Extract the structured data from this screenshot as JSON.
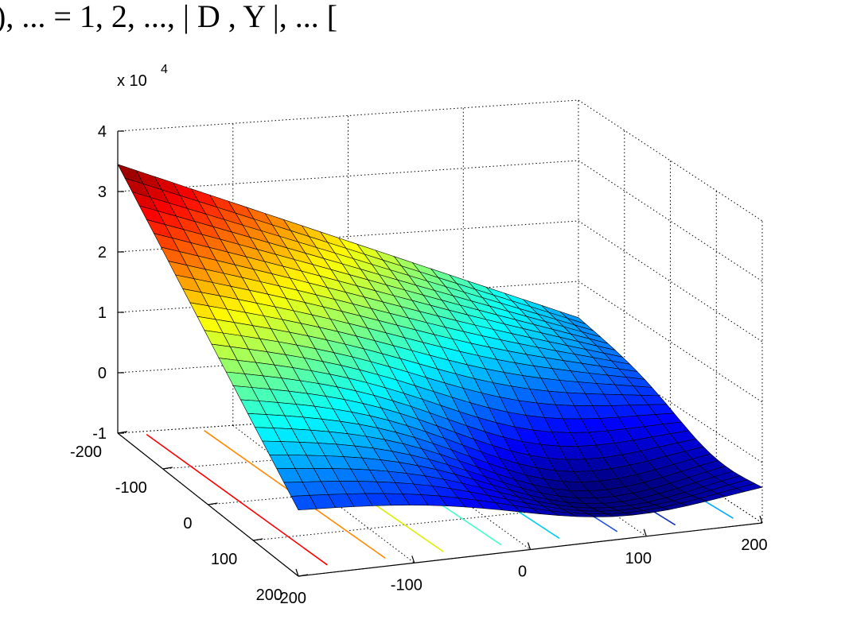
{
  "header_fragment": "), ... = 1, 2, ..., | D , Y |, ... [",
  "chart_data": {
    "type": "surface",
    "title": "",
    "xlabel": "",
    "ylabel": "",
    "zlabel": "",
    "xlim": [
      -200,
      200
    ],
    "ylim": [
      -200,
      200
    ],
    "zlim": [
      -10000,
      40000
    ],
    "x_ticks": [
      "-200",
      "-100",
      "0",
      "100",
      "200"
    ],
    "y_ticks": [
      "-200",
      "-100",
      "0",
      "100",
      "200"
    ],
    "z_ticks": [
      "-1",
      "0",
      "1",
      "2",
      "3",
      "4"
    ],
    "z_exponent": "x 10",
    "z_exponent_power": "4",
    "grid": true,
    "colormap": "jet",
    "surface": {
      "x_range": [
        -200,
        200
      ],
      "y_range": [
        -200,
        200
      ],
      "grid_size": 25,
      "corner_values": {
        "x_-200_y_-200": 34500,
        "x_200_y_-200": 4000,
        "x_-200_y_200": 1000,
        "x_200_y_200": -2000
      },
      "min_value": -7000,
      "min_location": [
        80,
        100
      ]
    },
    "contour_lines": [
      {
        "x": -175,
        "color": "#ff0000"
      },
      {
        "x": -125,
        "color": "#ff8800"
      },
      {
        "x": -75,
        "color": "#ddee00"
      },
      {
        "x": -25,
        "color": "#44ffcc"
      },
      {
        "x": 25,
        "color": "#00ccee"
      },
      {
        "x": 75,
        "color": "#2255dd"
      },
      {
        "x": 125,
        "color": "#1133bb"
      },
      {
        "x": 175,
        "color": "#00aaff"
      }
    ]
  }
}
